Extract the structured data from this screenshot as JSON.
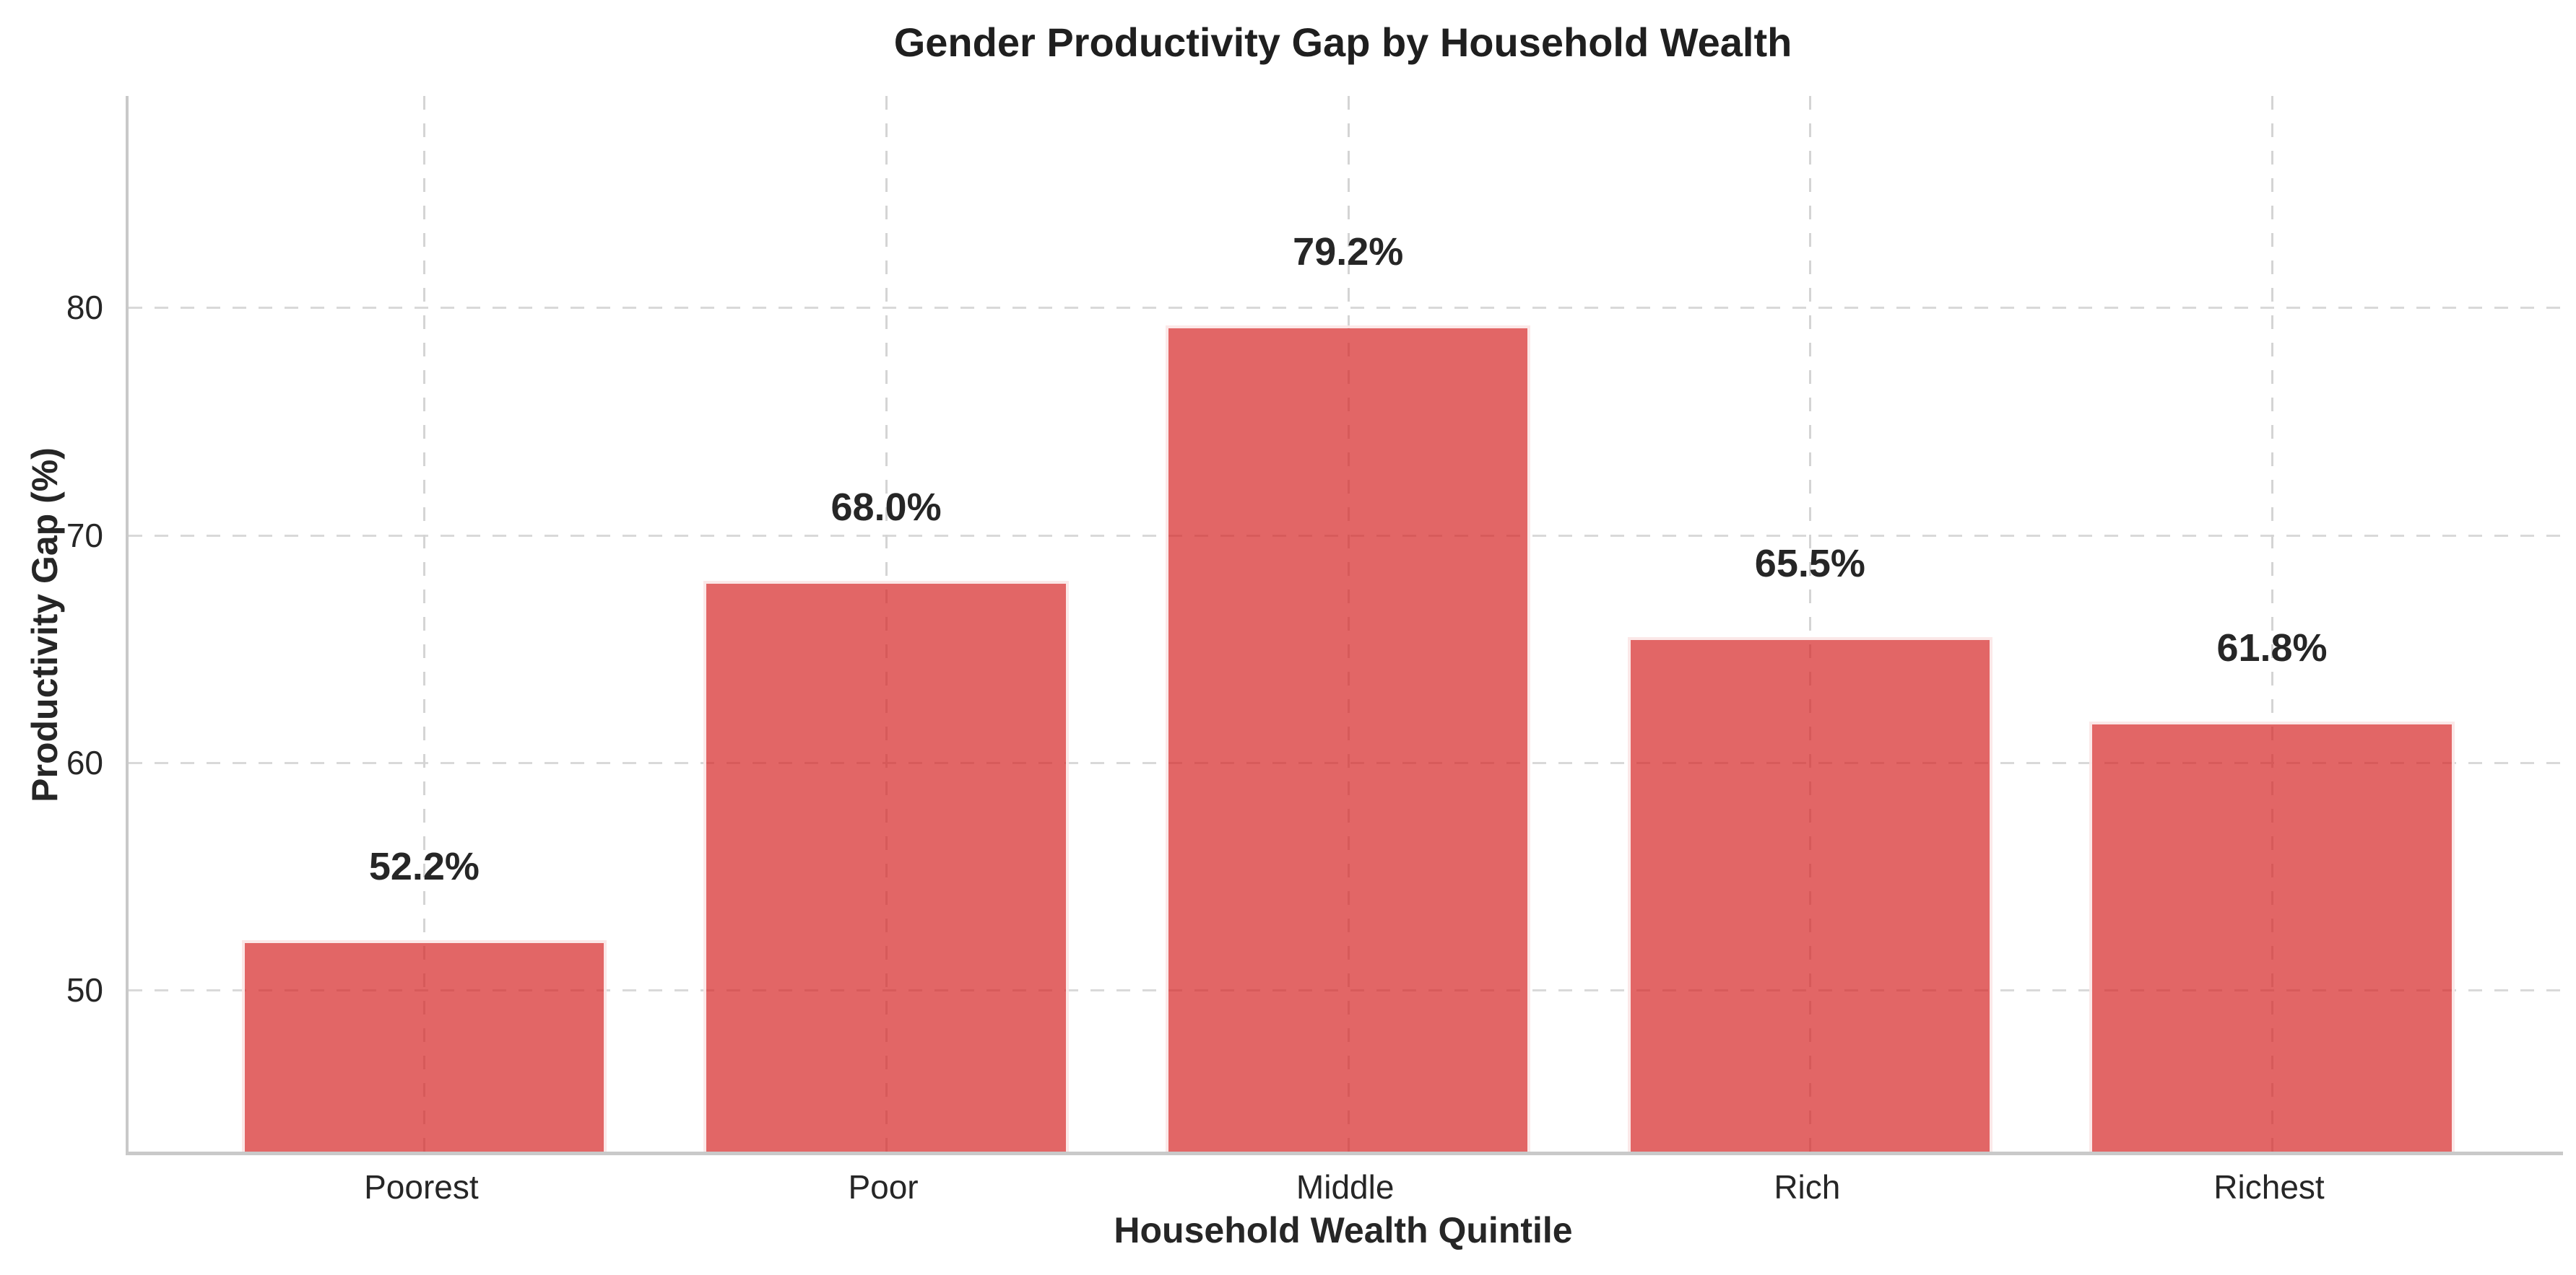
{
  "chart": {
    "title": "Gender Productivity Gap by Household Wealth",
    "xlabel": "Household Wealth Quintile",
    "ylabel": "Productivity Gap (%)"
  },
  "chart_data": {
    "type": "bar",
    "title": "Gender Productivity Gap by Household Wealth",
    "xlabel": "Household Wealth Quintile",
    "ylabel": "Productivity Gap (%)",
    "categories": [
      "Poorest",
      "Poor",
      "Middle",
      "Rich",
      "Richest"
    ],
    "values": [
      52.2,
      68.0,
      79.2,
      65.5,
      61.8
    ],
    "value_labels": [
      "52.2%",
      "68.0%",
      "79.2%",
      "65.5%",
      "61.8%"
    ],
    "yticks": [
      50,
      60,
      70,
      80
    ],
    "ylim": [
      42.9,
      89.3
    ],
    "xlim": [
      -0.64,
      4.63
    ],
    "bar_width": 0.79,
    "grid": "dashed-both-axes",
    "legend": "none",
    "colors": {
      "bar_fill": "rgba(214,39,40,0.71)",
      "bar_edge": "rgba(255,255,255,0.85)",
      "gridline": "#d9d9d9",
      "spine": "#c9c9c9",
      "text": "#262626"
    }
  }
}
